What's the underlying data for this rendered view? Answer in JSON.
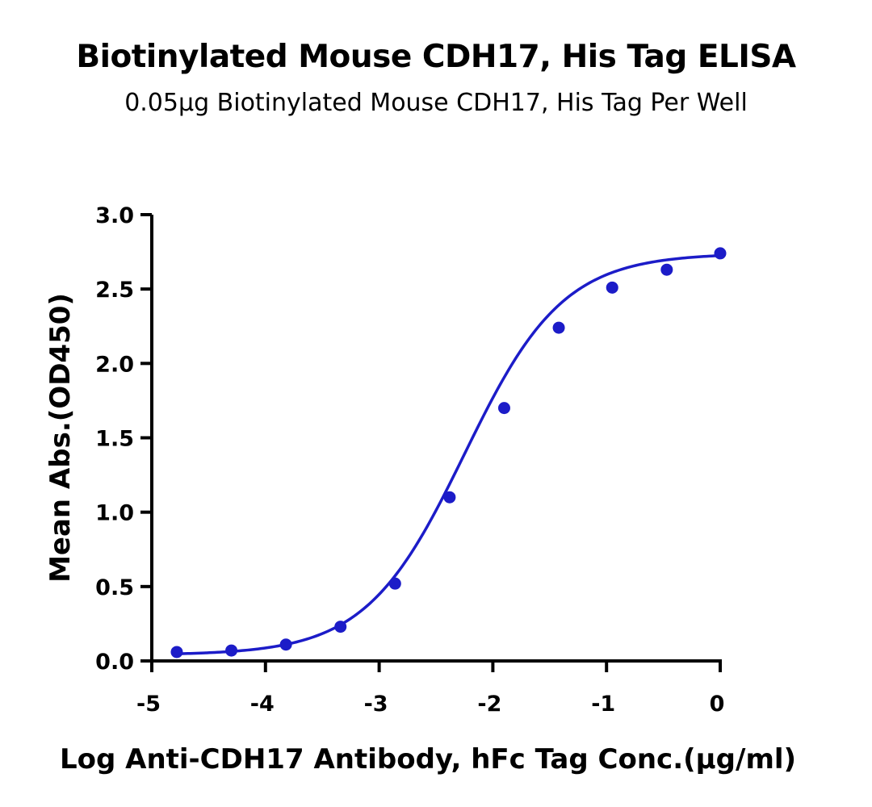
{
  "chart_data": {
    "type": "scatter",
    "title": "Biotinylated Mouse CDH17, His Tag ELISA",
    "subtitle": "0.05μg Biotinylated Mouse CDH17, His Tag Per Well",
    "xlabel": "Log Anti-CDH17 Antibody, hFc Tag Conc.(μg/ml)",
    "ylabel": "Mean Abs.(OD450)",
    "xlim": [
      -5,
      0
    ],
    "ylim": [
      0,
      3.0
    ],
    "xticks": [
      "-5",
      "-4",
      "-3",
      "-2",
      "-1",
      "0"
    ],
    "yticks": [
      "0.0",
      "0.5",
      "1.0",
      "1.5",
      "2.0",
      "2.5",
      "3.0"
    ],
    "grid": false,
    "series": [
      {
        "color": "#1c1cc8",
        "fit": "sigmoidal 4PL",
        "x": [
          -4.78,
          -4.3,
          -3.82,
          -3.34,
          -2.86,
          -2.38,
          -1.9,
          -1.42,
          -0.95,
          -0.47,
          0.0
        ],
        "y": [
          0.06,
          0.07,
          0.11,
          0.23,
          0.52,
          1.1,
          1.7,
          2.24,
          2.51,
          2.63,
          2.74
        ]
      }
    ]
  }
}
